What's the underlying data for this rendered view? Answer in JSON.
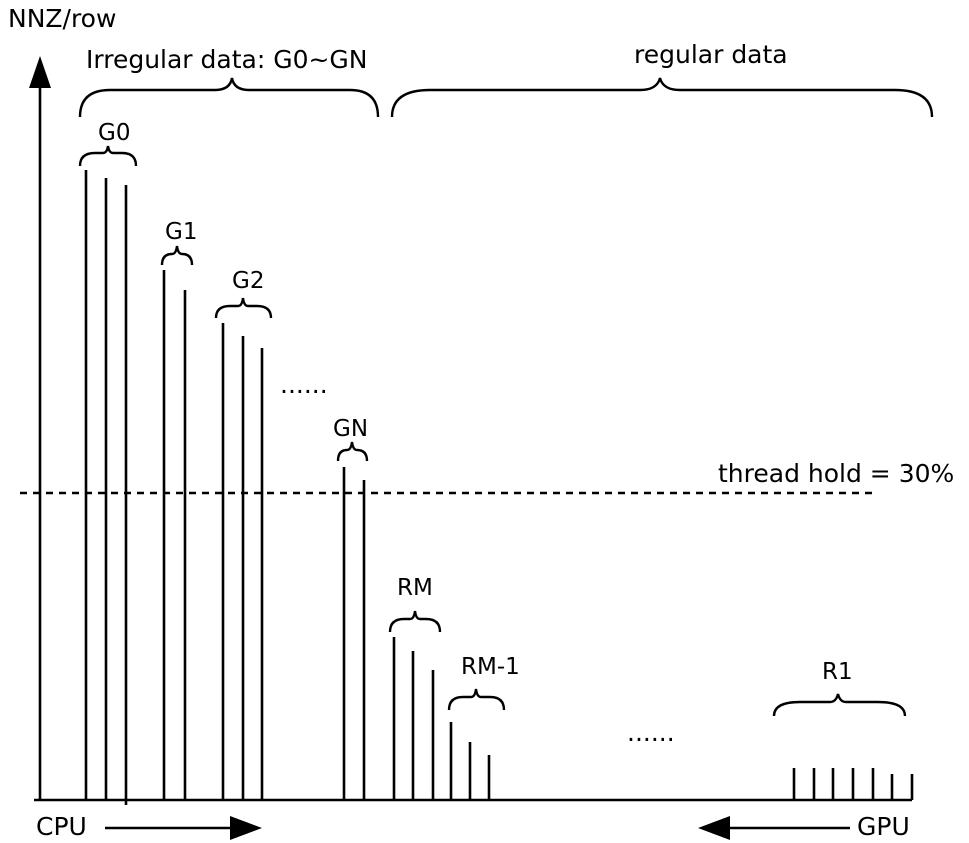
{
  "axis": {
    "y_label": "NNZ/row",
    "x_left_label": "CPU",
    "x_right_label": "GPU"
  },
  "sections": {
    "irregular_label": "Irregular data: G0~GN",
    "regular_label": "regular data"
  },
  "threshold": {
    "label": "thread hold = 30%",
    "value_percent": 30
  },
  "groups": [
    {
      "label": "G0"
    },
    {
      "label": "G1"
    },
    {
      "label": "G2"
    },
    {
      "label": "GN"
    },
    {
      "label": "RM"
    },
    {
      "label": "RM-1"
    },
    {
      "label": "R1"
    }
  ],
  "ellipses": [
    {
      "text": "......"
    },
    {
      "text": "......"
    }
  ]
}
